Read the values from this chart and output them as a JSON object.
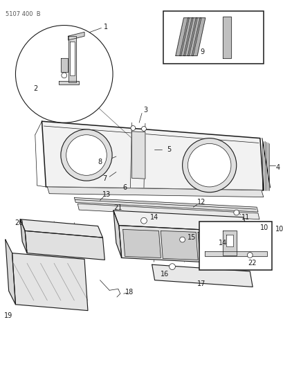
{
  "title_code": "5107 400  B",
  "bg": "#ffffff",
  "lc": "#1a1a1a",
  "figsize": [
    4.1,
    5.33
  ],
  "dpi": 100
}
